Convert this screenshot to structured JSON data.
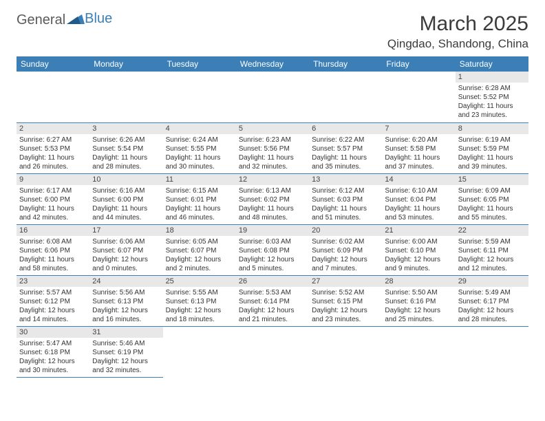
{
  "logo": {
    "general": "General",
    "blue": "Blue"
  },
  "title": "March 2025",
  "location": "Qingdao, Shandong, China",
  "styling": {
    "header_bg": "#3b7fb6",
    "header_text": "#ffffff",
    "border_color": "#3b7fb6",
    "daynum_bg": "#e8e8e8",
    "body_text": "#333333",
    "page_bg": "#ffffff",
    "month_fontsize": 30,
    "location_fontsize": 17,
    "dayheader_fontsize": 12,
    "daynum_fontsize": 11,
    "content_fontsize": 10
  },
  "day_headers": [
    "Sunday",
    "Monday",
    "Tuesday",
    "Wednesday",
    "Thursday",
    "Friday",
    "Saturday"
  ],
  "weeks": [
    [
      null,
      null,
      null,
      null,
      null,
      null,
      {
        "n": "1",
        "sr": "Sunrise: 6:28 AM",
        "ss": "Sunset: 5:52 PM",
        "d1": "Daylight: 11 hours",
        "d2": "and 23 minutes."
      }
    ],
    [
      {
        "n": "2",
        "sr": "Sunrise: 6:27 AM",
        "ss": "Sunset: 5:53 PM",
        "d1": "Daylight: 11 hours",
        "d2": "and 26 minutes."
      },
      {
        "n": "3",
        "sr": "Sunrise: 6:26 AM",
        "ss": "Sunset: 5:54 PM",
        "d1": "Daylight: 11 hours",
        "d2": "and 28 minutes."
      },
      {
        "n": "4",
        "sr": "Sunrise: 6:24 AM",
        "ss": "Sunset: 5:55 PM",
        "d1": "Daylight: 11 hours",
        "d2": "and 30 minutes."
      },
      {
        "n": "5",
        "sr": "Sunrise: 6:23 AM",
        "ss": "Sunset: 5:56 PM",
        "d1": "Daylight: 11 hours",
        "d2": "and 32 minutes."
      },
      {
        "n": "6",
        "sr": "Sunrise: 6:22 AM",
        "ss": "Sunset: 5:57 PM",
        "d1": "Daylight: 11 hours",
        "d2": "and 35 minutes."
      },
      {
        "n": "7",
        "sr": "Sunrise: 6:20 AM",
        "ss": "Sunset: 5:58 PM",
        "d1": "Daylight: 11 hours",
        "d2": "and 37 minutes."
      },
      {
        "n": "8",
        "sr": "Sunrise: 6:19 AM",
        "ss": "Sunset: 5:59 PM",
        "d1": "Daylight: 11 hours",
        "d2": "and 39 minutes."
      }
    ],
    [
      {
        "n": "9",
        "sr": "Sunrise: 6:17 AM",
        "ss": "Sunset: 6:00 PM",
        "d1": "Daylight: 11 hours",
        "d2": "and 42 minutes."
      },
      {
        "n": "10",
        "sr": "Sunrise: 6:16 AM",
        "ss": "Sunset: 6:00 PM",
        "d1": "Daylight: 11 hours",
        "d2": "and 44 minutes."
      },
      {
        "n": "11",
        "sr": "Sunrise: 6:15 AM",
        "ss": "Sunset: 6:01 PM",
        "d1": "Daylight: 11 hours",
        "d2": "and 46 minutes."
      },
      {
        "n": "12",
        "sr": "Sunrise: 6:13 AM",
        "ss": "Sunset: 6:02 PM",
        "d1": "Daylight: 11 hours",
        "d2": "and 48 minutes."
      },
      {
        "n": "13",
        "sr": "Sunrise: 6:12 AM",
        "ss": "Sunset: 6:03 PM",
        "d1": "Daylight: 11 hours",
        "d2": "and 51 minutes."
      },
      {
        "n": "14",
        "sr": "Sunrise: 6:10 AM",
        "ss": "Sunset: 6:04 PM",
        "d1": "Daylight: 11 hours",
        "d2": "and 53 minutes."
      },
      {
        "n": "15",
        "sr": "Sunrise: 6:09 AM",
        "ss": "Sunset: 6:05 PM",
        "d1": "Daylight: 11 hours",
        "d2": "and 55 minutes."
      }
    ],
    [
      {
        "n": "16",
        "sr": "Sunrise: 6:08 AM",
        "ss": "Sunset: 6:06 PM",
        "d1": "Daylight: 11 hours",
        "d2": "and 58 minutes."
      },
      {
        "n": "17",
        "sr": "Sunrise: 6:06 AM",
        "ss": "Sunset: 6:07 PM",
        "d1": "Daylight: 12 hours",
        "d2": "and 0 minutes."
      },
      {
        "n": "18",
        "sr": "Sunrise: 6:05 AM",
        "ss": "Sunset: 6:07 PM",
        "d1": "Daylight: 12 hours",
        "d2": "and 2 minutes."
      },
      {
        "n": "19",
        "sr": "Sunrise: 6:03 AM",
        "ss": "Sunset: 6:08 PM",
        "d1": "Daylight: 12 hours",
        "d2": "and 5 minutes."
      },
      {
        "n": "20",
        "sr": "Sunrise: 6:02 AM",
        "ss": "Sunset: 6:09 PM",
        "d1": "Daylight: 12 hours",
        "d2": "and 7 minutes."
      },
      {
        "n": "21",
        "sr": "Sunrise: 6:00 AM",
        "ss": "Sunset: 6:10 PM",
        "d1": "Daylight: 12 hours",
        "d2": "and 9 minutes."
      },
      {
        "n": "22",
        "sr": "Sunrise: 5:59 AM",
        "ss": "Sunset: 6:11 PM",
        "d1": "Daylight: 12 hours",
        "d2": "and 12 minutes."
      }
    ],
    [
      {
        "n": "23",
        "sr": "Sunrise: 5:57 AM",
        "ss": "Sunset: 6:12 PM",
        "d1": "Daylight: 12 hours",
        "d2": "and 14 minutes."
      },
      {
        "n": "24",
        "sr": "Sunrise: 5:56 AM",
        "ss": "Sunset: 6:13 PM",
        "d1": "Daylight: 12 hours",
        "d2": "and 16 minutes."
      },
      {
        "n": "25",
        "sr": "Sunrise: 5:55 AM",
        "ss": "Sunset: 6:13 PM",
        "d1": "Daylight: 12 hours",
        "d2": "and 18 minutes."
      },
      {
        "n": "26",
        "sr": "Sunrise: 5:53 AM",
        "ss": "Sunset: 6:14 PM",
        "d1": "Daylight: 12 hours",
        "d2": "and 21 minutes."
      },
      {
        "n": "27",
        "sr": "Sunrise: 5:52 AM",
        "ss": "Sunset: 6:15 PM",
        "d1": "Daylight: 12 hours",
        "d2": "and 23 minutes."
      },
      {
        "n": "28",
        "sr": "Sunrise: 5:50 AM",
        "ss": "Sunset: 6:16 PM",
        "d1": "Daylight: 12 hours",
        "d2": "and 25 minutes."
      },
      {
        "n": "29",
        "sr": "Sunrise: 5:49 AM",
        "ss": "Sunset: 6:17 PM",
        "d1": "Daylight: 12 hours",
        "d2": "and 28 minutes."
      }
    ],
    [
      {
        "n": "30",
        "sr": "Sunrise: 5:47 AM",
        "ss": "Sunset: 6:18 PM",
        "d1": "Daylight: 12 hours",
        "d2": "and 30 minutes."
      },
      {
        "n": "31",
        "sr": "Sunrise: 5:46 AM",
        "ss": "Sunset: 6:19 PM",
        "d1": "Daylight: 12 hours",
        "d2": "and 32 minutes."
      },
      null,
      null,
      null,
      null,
      null
    ]
  ]
}
